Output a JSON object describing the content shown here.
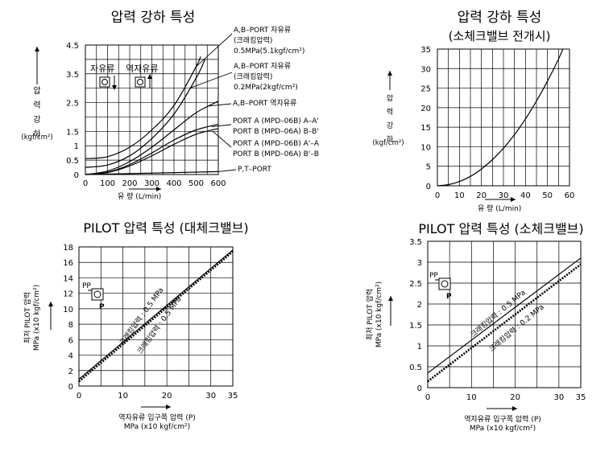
{
  "chart_data": [
    {
      "type": "line",
      "title": "압력 강하 특성",
      "xlabel": "유 량 (L/min)",
      "ylabel": "압력강하",
      "yunit": "(kgf/cm²)",
      "xlim": [
        0,
        600
      ],
      "ylim": [
        0,
        4.5
      ],
      "x_ticks": [
        "0",
        "100",
        "200",
        "300",
        "400",
        "500",
        "600"
      ],
      "y_ticks": [
        {
          "v": 0,
          "label": "0"
        },
        {
          "v": 0.5,
          "label": "0.5"
        },
        {
          "v": 1,
          "label": "1"
        },
        {
          "v": 1.5,
          "label": "1.5"
        },
        {
          "v": 2.5,
          "label": "2.5"
        },
        {
          "v": 3.5,
          "label": "3.5"
        },
        {
          "v": 4.5,
          "label": "4.5"
        }
      ],
      "inset": {
        "labels": [
          "자유류",
          "역자유류"
        ]
      },
      "series": [
        {
          "name": "A,B-PORT 자유류 (크래킹압력) 0.5MPa(5.1kgf/cm²)",
          "x": [
            0,
            100,
            200,
            300,
            400,
            500,
            520
          ],
          "y": [
            0.55,
            0.62,
            0.95,
            1.55,
            2.4,
            3.75,
            4.1
          ]
        },
        {
          "name": "A,B-PORT 자유류 (크래킹압력) 0.2MPa(2kgf/cm²)",
          "x": [
            0,
            100,
            200,
            300,
            400,
            500,
            540
          ],
          "y": [
            0.25,
            0.33,
            0.65,
            1.25,
            2.1,
            3.35,
            4.0
          ]
        },
        {
          "name": "A,B-PORT 역자유류",
          "x": [
            0,
            100,
            200,
            300,
            400,
            500,
            600
          ],
          "y": [
            0,
            0.12,
            0.45,
            0.95,
            1.55,
            2.15,
            2.55
          ]
        },
        {
          "name": "PORT A (MPD-06B) A–A' / PORT B (MPD-06A) B–B'",
          "x": [
            0,
            100,
            200,
            300,
            400,
            500,
            600
          ],
          "y": [
            0,
            0.08,
            0.35,
            0.75,
            1.2,
            1.55,
            1.75
          ]
        },
        {
          "name": "PORT A (MPD-06B) A'–A / PORT B (MPD-06A) B'–B",
          "x": [
            0,
            100,
            200,
            300,
            400,
            500,
            600
          ],
          "y": [
            0,
            0.07,
            0.3,
            0.65,
            1.05,
            1.4,
            1.6
          ]
        },
        {
          "name": "P,T–PORT",
          "x": [
            0,
            600
          ],
          "y": [
            0,
            0.1
          ]
        }
      ],
      "annotations": [
        {
          "lines": [
            "A,B–PORT 자유류",
            "(크래킹압력)",
            "0.5MPa(5.1kgf/cm²)"
          ]
        },
        {
          "lines": [
            "A,B–PORT 자유류",
            "(크래킹압력)",
            "0.2MPa(2kgf/cm²)"
          ]
        },
        {
          "lines": [
            "A,B–PORT 역자유류"
          ]
        },
        {
          "lines": [
            "PORT A  (MPD–06B)  A–A'",
            "PORT B  (MPD–06A)  B–B'"
          ]
        },
        {
          "lines": [
            "PORT A  (MPD–06B)  A'–A",
            "PORT B  (MPD–06A)  B'–B"
          ]
        },
        {
          "lines": [
            "P,T–PORT"
          ]
        }
      ]
    },
    {
      "type": "line",
      "title": "압력 강하 특성",
      "subtitle": "(소체크밸브 전개시)",
      "xlabel": "유 량 (L/min)",
      "ylabel": "압력강하",
      "yunit": "(kgf/cm²)",
      "xlim": [
        0,
        60
      ],
      "ylim": [
        0,
        35
      ],
      "x_ticks": [
        "0",
        "10",
        "20",
        "30",
        "40",
        "50",
        "60"
      ],
      "y_ticks": [
        "0",
        "5",
        "10",
        "15",
        "20",
        "25",
        "30",
        "35"
      ],
      "series": [
        {
          "x": [
            0,
            5,
            10,
            15,
            20,
            25,
            30,
            35,
            40,
            45,
            50,
            55,
            57
          ],
          "y": [
            0,
            0.3,
            1.1,
            2.4,
            4.3,
            6.7,
            9.6,
            13.1,
            17.1,
            21.7,
            26.8,
            32.4,
            35
          ]
        }
      ]
    },
    {
      "type": "line",
      "title": "PILOT 압력 특성 (대체크밸브)",
      "xlabel": "역자유류 입구쪽 압력 (P)",
      "xunit": "MPa (x10 kgf/cm²)",
      "ylabel": "최저 PILOT 압력",
      "yunit": "MPa (x10 kgf/cm²)",
      "xlim": [
        0,
        35
      ],
      "ylim": [
        0,
        18
      ],
      "x_ticks": [
        "0",
        "10",
        "20",
        "30",
        "35"
      ],
      "y_ticks": [
        "0",
        "2",
        "4",
        "6",
        "8",
        "10",
        "12",
        "14",
        "16",
        "18"
      ],
      "inset": {
        "labels": [
          "PP",
          "P"
        ]
      },
      "series": [
        {
          "name": "크래킹압력 : 0.5 MPa",
          "style": "solid",
          "x": [
            0,
            35
          ],
          "y": [
            0.9,
            17.6
          ]
        },
        {
          "name": "크래킹압력 : 0.5 MPa",
          "style": "dotted",
          "x": [
            0,
            35
          ],
          "y": [
            0.6,
            17.4
          ]
        }
      ]
    },
    {
      "type": "line",
      "title": "PILOT 압력 특성 (소체크밸브)",
      "xlabel": "역자유류 입구쪽 압력 (P)",
      "xunit": "MPa (x10 kgf/cm²)",
      "ylabel": "최저 PILOT 압력",
      "yunit": "MPa (x10 kgf/cm²)",
      "xlim": [
        0,
        35
      ],
      "ylim": [
        0,
        3.5
      ],
      "x_ticks": [
        "0",
        "10",
        "20",
        "30",
        "35"
      ],
      "y_ticks": [
        "0",
        "0.5",
        "1",
        "1.5",
        "2",
        "2.5",
        "3",
        "3.5"
      ],
      "inset": {
        "labels": [
          "PP",
          "P"
        ]
      },
      "series": [
        {
          "name": "크래킹압력 : 0.5 MPa",
          "style": "solid",
          "x": [
            0,
            35
          ],
          "y": [
            0.35,
            3.1
          ]
        },
        {
          "name": "크래킹압력 : 0.2 MPa",
          "style": "dotted",
          "x": [
            0,
            35
          ],
          "y": [
            0.15,
            2.95
          ]
        }
      ]
    }
  ]
}
